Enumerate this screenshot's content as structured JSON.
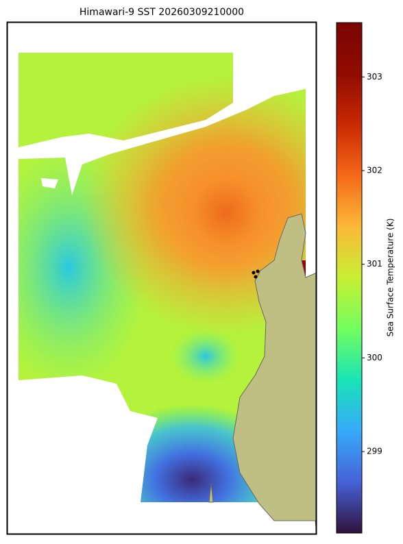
{
  "chart_data": {
    "type": "map",
    "title": "Himawari-9 SST 20260309210000",
    "colorbar_label": "Sea Surface Temperature (K)",
    "colormap": "turbo",
    "zlim": [
      298.13,
      303.58
    ],
    "zticks": [
      299,
      300,
      301,
      302,
      303
    ]
  }
}
